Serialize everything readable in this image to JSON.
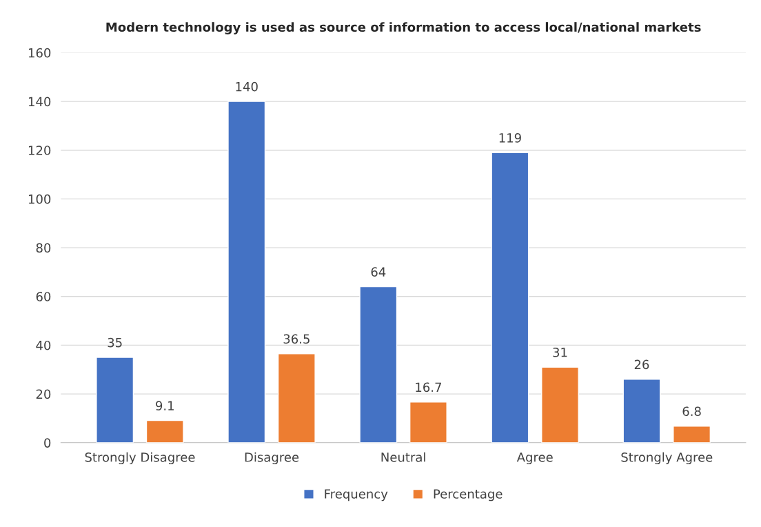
{
  "chart_data": {
    "type": "bar",
    "title": "Modern technology is used as source of information to access local/national markets",
    "categories": [
      "Strongly Disagree",
      "Disagree",
      "Neutral",
      "Agree",
      "Strongly Agree"
    ],
    "series": [
      {
        "name": "Frequency",
        "color": "#4472c4",
        "values": [
          35,
          140,
          64,
          119,
          26
        ]
      },
      {
        "name": "Percentage",
        "color": "#ed7d31",
        "values": [
          9.1,
          36.5,
          16.7,
          31,
          6.8
        ]
      }
    ],
    "ylim": [
      0,
      160
    ],
    "yticks": [
      0,
      20,
      40,
      60,
      80,
      100,
      120,
      140,
      160
    ],
    "grid": "y",
    "legend": "bottom",
    "data_labels": true
  }
}
